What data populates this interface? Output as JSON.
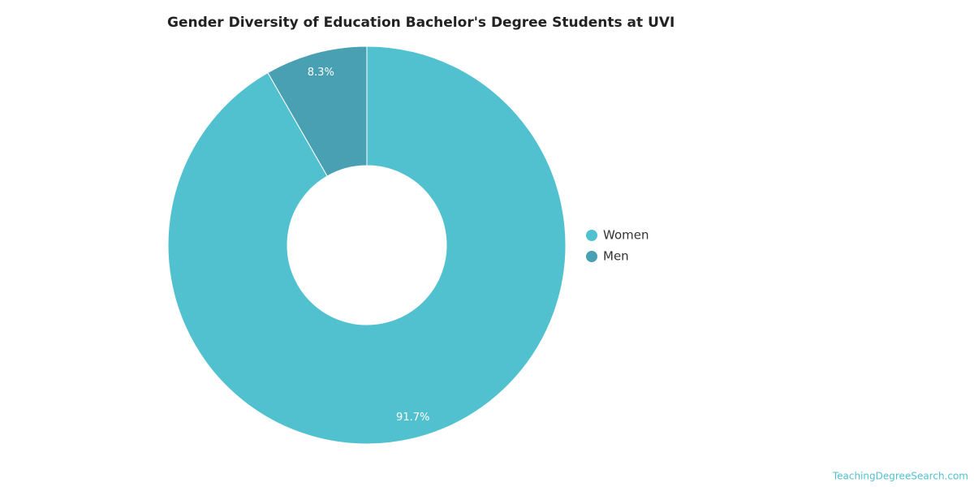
{
  "chart_data": {
    "type": "donut",
    "title": "Gender Diversity of Education Bachelor's Degree Students at UVI",
    "categories": [
      "Women",
      "Men"
    ],
    "values": [
      91.7,
      8.3
    ],
    "value_labels": [
      "91.7%",
      "8.3%"
    ],
    "colors": [
      "#52c1cf",
      "#4aa0b3"
    ],
    "legend": "right",
    "credit": "TeachingDegreeSearch.com"
  }
}
